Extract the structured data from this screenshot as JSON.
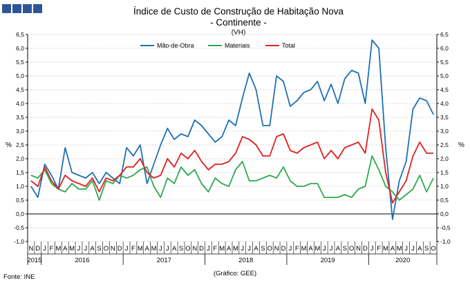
{
  "logo": {
    "squares": 4,
    "color": "#2f5597"
  },
  "chart_data": {
    "type": "line",
    "title": "Índice de Custo de Construção de Habitação Nova",
    "subtitle": "- Continente -",
    "unit": "(VH)",
    "ylabel_left": "%",
    "ylabel_right": "%",
    "ylim": [
      -1.0,
      6.5
    ],
    "yticks": [
      "-1,0",
      "-0,5",
      "0,0",
      "0,5",
      "1,0",
      "1,5",
      "2,0",
      "2,5",
      "3,0",
      "3,5",
      "4,0",
      "4,5",
      "5,0",
      "5,5",
      "6,0",
      "6,5"
    ],
    "grid": true,
    "legend_position": "top-center",
    "months": [
      "N",
      "D",
      "J",
      "F",
      "M",
      "A",
      "M",
      "J",
      "J",
      "A",
      "S",
      "O",
      "N",
      "D",
      "J",
      "F",
      "M",
      "A",
      "M",
      "J",
      "J",
      "A",
      "S",
      "O",
      "N",
      "D",
      "J",
      "F",
      "M",
      "A",
      "M",
      "J",
      "J",
      "A",
      "S",
      "O",
      "N",
      "D",
      "J",
      "F",
      "M",
      "A",
      "M",
      "J",
      "J",
      "A",
      "S",
      "O",
      "N",
      "D",
      "J",
      "F",
      "M",
      "A",
      "M",
      "J",
      "J",
      "A",
      "S",
      "O"
    ],
    "years": [
      {
        "label": "2015",
        "start": 0,
        "end": 1
      },
      {
        "label": "2016",
        "start": 2,
        "end": 13
      },
      {
        "label": "2017",
        "start": 14,
        "end": 25
      },
      {
        "label": "2018",
        "start": 26,
        "end": 37
      },
      {
        "label": "2019",
        "start": 38,
        "end": 49
      },
      {
        "label": "2020",
        "start": 50,
        "end": 59
      }
    ],
    "series": [
      {
        "name": "Mão-de-Obra",
        "color": "#1f6fb3",
        "values": [
          1.0,
          0.6,
          1.8,
          1.4,
          0.9,
          2.4,
          1.5,
          1.4,
          1.3,
          1.5,
          1.1,
          1.5,
          1.3,
          1.1,
          2.4,
          2.1,
          2.5,
          1.1,
          1.8,
          2.5,
          3.1,
          2.7,
          2.9,
          2.8,
          3.4,
          3.2,
          2.9,
          2.6,
          2.8,
          3.4,
          3.2,
          4.2,
          5.1,
          4.5,
          3.2,
          3.2,
          5.0,
          4.8,
          3.9,
          4.1,
          4.4,
          4.5,
          4.8,
          4.1,
          4.7,
          4.0,
          4.9,
          5.2,
          5.1,
          4.0,
          6.3,
          6.0,
          2.4,
          -0.2,
          1.2,
          1.9,
          3.8,
          4.2,
          4.1,
          3.6
        ]
      },
      {
        "name": "Materiais",
        "color": "#2fa84f",
        "values": [
          1.4,
          1.3,
          1.6,
          1.1,
          0.9,
          0.8,
          1.1,
          0.9,
          0.9,
          1.2,
          0.5,
          1.2,
          1.1,
          1.4,
          1.3,
          1.4,
          1.6,
          1.7,
          1.0,
          0.6,
          1.3,
          1.1,
          1.7,
          1.4,
          1.6,
          1.1,
          0.8,
          1.3,
          1.1,
          1.0,
          1.6,
          1.9,
          1.2,
          1.2,
          1.3,
          1.4,
          1.3,
          1.7,
          1.2,
          1.0,
          1.0,
          1.1,
          1.1,
          0.6,
          0.6,
          0.6,
          0.7,
          0.6,
          0.9,
          1.0,
          2.1,
          1.6,
          1.0,
          0.8,
          0.5,
          0.7,
          0.9,
          1.4,
          0.8,
          1.3
        ]
      },
      {
        "name": "Total",
        "color": "#e02020",
        "values": [
          1.2,
          1.0,
          1.7,
          1.2,
          0.9,
          1.4,
          1.2,
          1.1,
          1.0,
          1.3,
          0.8,
          1.3,
          1.2,
          1.4,
          1.7,
          1.7,
          2.0,
          1.5,
          1.3,
          1.4,
          2.0,
          1.7,
          2.2,
          2.0,
          2.3,
          1.9,
          1.6,
          1.8,
          1.8,
          1.9,
          2.2,
          2.8,
          2.7,
          2.5,
          2.1,
          2.1,
          2.8,
          2.9,
          2.3,
          2.2,
          2.4,
          2.5,
          2.6,
          2.0,
          2.3,
          2.0,
          2.4,
          2.5,
          2.6,
          2.2,
          3.8,
          3.4,
          1.5,
          0.4,
          0.8,
          1.2,
          2.1,
          2.6,
          2.2,
          2.2
        ]
      }
    ]
  },
  "footer": {
    "source": "Fonte: INE",
    "credit": "(Gráfico: GEE)"
  }
}
